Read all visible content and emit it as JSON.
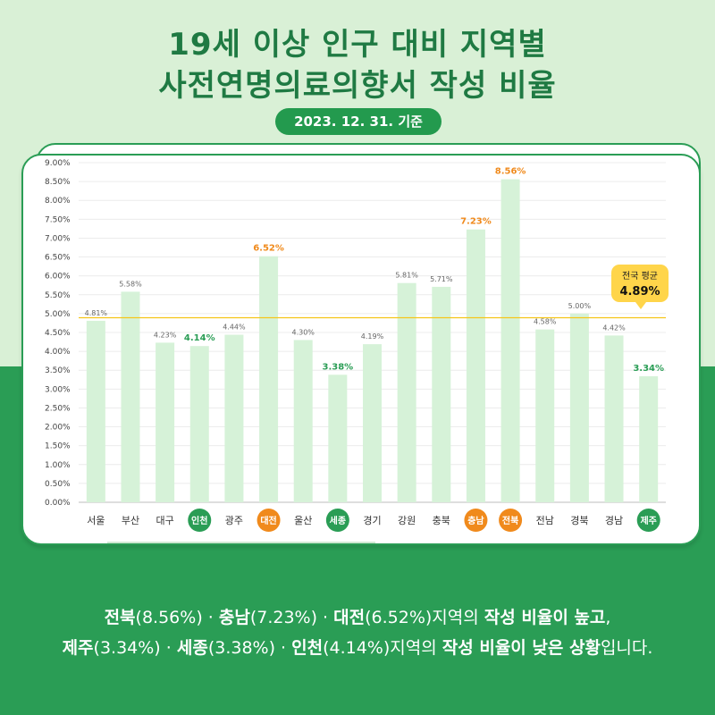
{
  "header": {
    "title_line1": "19세 이상 인구 대비 지역별",
    "title_line2": "사전연명의료의향서 작성 비율",
    "date_badge": "2023. 12. 31. 기준"
  },
  "chart_data": {
    "type": "bar",
    "categories": [
      "서울",
      "부산",
      "대구",
      "인천",
      "광주",
      "대전",
      "울산",
      "세종",
      "경기",
      "강원",
      "충북",
      "충남",
      "전북",
      "전남",
      "경북",
      "경남",
      "제주"
    ],
    "values": [
      4.81,
      5.58,
      4.23,
      4.14,
      4.44,
      6.52,
      4.3,
      3.38,
      4.19,
      5.81,
      5.71,
      7.23,
      8.56,
      4.58,
      5.0,
      4.42,
      3.34
    ],
    "value_labels": [
      "4.81%",
      "5.58%",
      "4.23%",
      "4.14%",
      "4.44%",
      "6.52%",
      "4.30%",
      "3.38%",
      "4.19%",
      "5.81%",
      "5.71%",
      "7.23%",
      "8.56%",
      "4.58%",
      "5.00%",
      "4.42%",
      "3.34%"
    ],
    "highlight": [
      "none",
      "none",
      "none",
      "low",
      "none",
      "high",
      "none",
      "low",
      "none",
      "none",
      "none",
      "high",
      "high",
      "none",
      "none",
      "none",
      "low"
    ],
    "yticks": [
      "0.00%",
      "0.50%",
      "1.00%",
      "1.50%",
      "2.00%",
      "2.50%",
      "3.00%",
      "3.50%",
      "4.00%",
      "4.50%",
      "5.00%",
      "5.50%",
      "6.00%",
      "6.50%",
      "7.00%",
      "7.50%",
      "8.00%",
      "8.50%",
      "9.00%"
    ],
    "ylim": [
      0,
      9
    ],
    "grid": true,
    "reference_line": {
      "value": 4.89,
      "label_title": "전국 평균",
      "label_value": "4.89%"
    },
    "colors": {
      "bar": "#d6f2d8",
      "high": "#f08a1c",
      "low": "#2a9d55",
      "ref_line": "#f5c518",
      "badge_bg": "#ffd54a"
    }
  },
  "footer": {
    "line1": [
      {
        "t": "전북",
        "b": true
      },
      {
        "t": "(8.56%) · ",
        "b": false
      },
      {
        "t": "충남",
        "b": true
      },
      {
        "t": "(7.23%) · ",
        "b": false
      },
      {
        "t": "대전",
        "b": true
      },
      {
        "t": "(6.52%)지역의 ",
        "b": false
      },
      {
        "t": "작성 비율이 높고",
        "b": true
      },
      {
        "t": ",",
        "b": false
      }
    ],
    "line2": [
      {
        "t": "제주",
        "b": true
      },
      {
        "t": "(3.34%) · ",
        "b": false
      },
      {
        "t": "세종",
        "b": true
      },
      {
        "t": "(3.38%) · ",
        "b": false
      },
      {
        "t": "인천",
        "b": true
      },
      {
        "t": "(4.14%)지역의 ",
        "b": false
      },
      {
        "t": "작성 비율이 낮은 상황",
        "b": true
      },
      {
        "t": "입니다.",
        "b": false
      }
    ]
  }
}
